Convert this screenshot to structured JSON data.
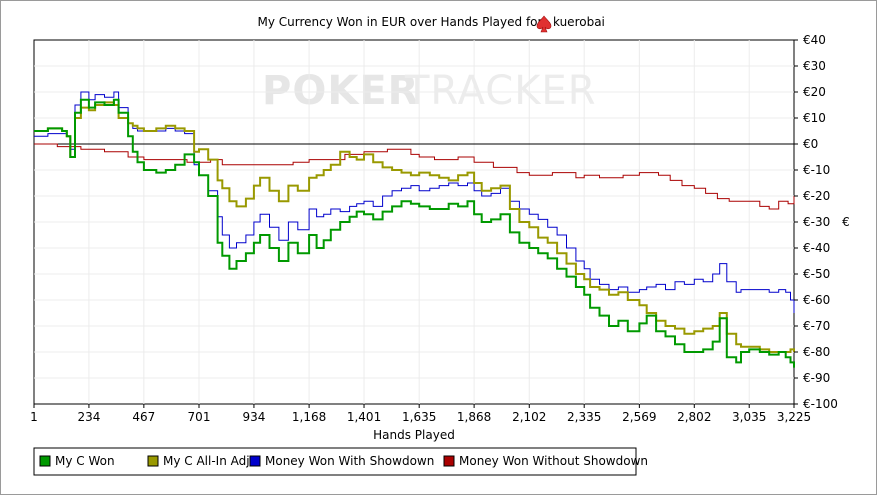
{
  "chart_data": {
    "type": "line",
    "title": "My Currency Won in EUR over Hands Played for",
    "player_name": "kuerobai",
    "watermark": {
      "left": "POKER",
      "right": "TRACKER"
    },
    "xlabel": "Hands Played",
    "ylabel": "€",
    "xlim": [
      1,
      3225
    ],
    "ylim": [
      -100,
      40
    ],
    "x_ticks": [
      1,
      234,
      467,
      701,
      934,
      1168,
      1401,
      1635,
      1868,
      2102,
      2335,
      2569,
      2802,
      3035,
      3225
    ],
    "x_tick_labels": [
      "1",
      "234",
      "467",
      "701",
      "934",
      "1,168",
      "1,401",
      "1,635",
      "1,868",
      "2,102",
      "2,335",
      "2,569",
      "2,802",
      "3,035",
      "3,225"
    ],
    "y_ticks": [
      40,
      30,
      20,
      10,
      0,
      -10,
      -20,
      -30,
      -40,
      -50,
      -60,
      -70,
      -80,
      -90,
      -100
    ],
    "y_tick_labels": [
      "€40",
      "€30",
      "€20",
      "€10",
      "€0",
      "€-10",
      "€-20",
      "€-30",
      "€-40",
      "€-50",
      "€-60",
      "€-70",
      "€-80",
      "€-90",
      "€-100"
    ],
    "grid": true,
    "legend_position": "bottom-left",
    "series": [
      {
        "name": "My C Won",
        "color": "#009900",
        "x": [
          1,
          60,
          120,
          140,
          155,
          175,
          200,
          234,
          260,
          300,
          340,
          360,
          400,
          420,
          440,
          467,
          520,
          560,
          600,
          640,
          680,
          701,
          740,
          780,
          800,
          830,
          860,
          900,
          934,
          960,
          1000,
          1040,
          1080,
          1120,
          1168,
          1200,
          1230,
          1260,
          1300,
          1340,
          1370,
          1401,
          1440,
          1480,
          1520,
          1560,
          1600,
          1635,
          1680,
          1720,
          1760,
          1800,
          1840,
          1868,
          1900,
          1940,
          1980,
          2020,
          2060,
          2102,
          2140,
          2180,
          2220,
          2260,
          2300,
          2335,
          2360,
          2400,
          2440,
          2480,
          2520,
          2569,
          2600,
          2640,
          2680,
          2720,
          2760,
          2802,
          2840,
          2880,
          2910,
          2940,
          2980,
          3000,
          3035,
          3080,
          3120,
          3160,
          3190,
          3210,
          3225
        ],
        "values": [
          5,
          6,
          5,
          3,
          -5,
          12,
          17,
          14,
          16,
          15,
          17,
          12,
          3,
          -3,
          -7,
          -10,
          -11,
          -10,
          -8,
          -4,
          -7,
          -12,
          -20,
          -38,
          -43,
          -48,
          -45,
          -42,
          -38,
          -35,
          -40,
          -45,
          -38,
          -42,
          -35,
          -40,
          -37,
          -33,
          -30,
          -28,
          -26,
          -27,
          -29,
          -26,
          -24,
          -22,
          -23,
          -24,
          -25,
          -25,
          -23,
          -24,
          -22,
          -27,
          -30,
          -29,
          -27,
          -34,
          -38,
          -40,
          -42,
          -44,
          -48,
          -51,
          -55,
          -58,
          -63,
          -66,
          -70,
          -68,
          -72,
          -69,
          -66,
          -72,
          -74,
          -77,
          -80,
          -80,
          -79,
          -76,
          -67,
          -82,
          -84,
          -80,
          -79,
          -80,
          -81,
          -80,
          -82,
          -84,
          -86
        ]
      },
      {
        "name": "My C All-In Adj",
        "color": "#999900",
        "x": [
          1,
          60,
          120,
          140,
          155,
          175,
          200,
          234,
          260,
          300,
          340,
          360,
          400,
          420,
          440,
          467,
          520,
          560,
          600,
          640,
          680,
          701,
          740,
          780,
          800,
          830,
          860,
          900,
          934,
          960,
          1000,
          1040,
          1080,
          1120,
          1168,
          1200,
          1230,
          1260,
          1300,
          1340,
          1370,
          1401,
          1440,
          1480,
          1520,
          1560,
          1600,
          1635,
          1680,
          1720,
          1760,
          1800,
          1840,
          1868,
          1900,
          1940,
          1980,
          2020,
          2060,
          2102,
          2140,
          2180,
          2220,
          2260,
          2300,
          2335,
          2360,
          2400,
          2440,
          2480,
          2520,
          2569,
          2600,
          2640,
          2680,
          2720,
          2760,
          2802,
          2840,
          2880,
          2910,
          2940,
          2980,
          3000,
          3035,
          3080,
          3120,
          3160,
          3190,
          3210,
          3225
        ],
        "values": [
          5,
          6,
          5,
          3,
          -5,
          10,
          14,
          13,
          15,
          16,
          15,
          10,
          8,
          7,
          6,
          5,
          6,
          7,
          6,
          5,
          -3,
          -2,
          -6,
          -14,
          -17,
          -22,
          -24,
          -21,
          -16,
          -13,
          -18,
          -22,
          -16,
          -18,
          -13,
          -12,
          -10,
          -8,
          -3,
          -5,
          -6,
          -4,
          -7,
          -9,
          -10,
          -11,
          -12,
          -11,
          -12,
          -13,
          -14,
          -12,
          -11,
          -15,
          -18,
          -17,
          -16,
          -25,
          -30,
          -32,
          -36,
          -38,
          -42,
          -46,
          -50,
          -52,
          -55,
          -56,
          -58,
          -57,
          -60,
          -62,
          -65,
          -68,
          -70,
          -71,
          -73,
          -72,
          -71,
          -70,
          -65,
          -73,
          -77,
          -78,
          -78,
          -79,
          -80,
          -80,
          -80,
          -79,
          -80
        ]
      },
      {
        "name": "Money Won With Showdown",
        "color": "#0000cc",
        "x": [
          1,
          60,
          120,
          140,
          155,
          175,
          200,
          234,
          260,
          300,
          340,
          360,
          400,
          420,
          440,
          467,
          520,
          560,
          600,
          640,
          680,
          701,
          740,
          780,
          800,
          830,
          860,
          900,
          934,
          960,
          1000,
          1040,
          1080,
          1120,
          1168,
          1200,
          1230,
          1260,
          1300,
          1340,
          1370,
          1401,
          1440,
          1480,
          1520,
          1560,
          1600,
          1635,
          1680,
          1720,
          1760,
          1800,
          1840,
          1868,
          1900,
          1940,
          1980,
          2020,
          2060,
          2102,
          2140,
          2180,
          2220,
          2260,
          2300,
          2335,
          2360,
          2400,
          2440,
          2480,
          2520,
          2569,
          2600,
          2640,
          2680,
          2720,
          2760,
          2802,
          2840,
          2880,
          2910,
          2940,
          2980,
          3000,
          3035,
          3080,
          3120,
          3160,
          3190,
          3210,
          3225
        ],
        "values": [
          3,
          4,
          4,
          3,
          -2,
          15,
          20,
          17,
          19,
          18,
          20,
          14,
          8,
          6,
          5,
          5,
          5,
          6,
          5,
          4,
          -8,
          -12,
          -18,
          -28,
          -35,
          -40,
          -38,
          -35,
          -30,
          -27,
          -32,
          -37,
          -30,
          -33,
          -25,
          -28,
          -27,
          -25,
          -26,
          -24,
          -23,
          -22,
          -24,
          -20,
          -18,
          -17,
          -16,
          -18,
          -17,
          -16,
          -15,
          -16,
          -15,
          -18,
          -20,
          -19,
          -17,
          -22,
          -25,
          -27,
          -29,
          -32,
          -35,
          -40,
          -45,
          -48,
          -52,
          -54,
          -56,
          -55,
          -57,
          -56,
          -55,
          -54,
          -56,
          -53,
          -54,
          -52,
          -53,
          -50,
          -46,
          -53,
          -57,
          -56,
          -56,
          -56,
          -57,
          -56,
          -57,
          -60,
          -65
        ]
      },
      {
        "name": "Money Won Without Showdown",
        "color": "#aa0000",
        "x": [
          1,
          100,
          200,
          300,
          400,
          467,
          550,
          650,
          701,
          750,
          800,
          900,
          1000,
          1100,
          1168,
          1250,
          1320,
          1401,
          1500,
          1600,
          1635,
          1700,
          1800,
          1868,
          1950,
          2050,
          2102,
          2200,
          2300,
          2335,
          2400,
          2500,
          2569,
          2650,
          2700,
          2750,
          2802,
          2850,
          2900,
          2950,
          3000,
          3035,
          3080,
          3120,
          3160,
          3200,
          3225
        ],
        "values": [
          0,
          -1,
          -2,
          -3,
          -5,
          -6,
          -6,
          -7,
          -7,
          -6,
          -8,
          -8,
          -8,
          -7,
          -6,
          -6,
          -4,
          -3,
          -2,
          -4,
          -5,
          -6,
          -5,
          -7,
          -9,
          -11,
          -12,
          -11,
          -13,
          -12,
          -13,
          -12,
          -11,
          -12,
          -14,
          -16,
          -17,
          -19,
          -21,
          -22,
          -22,
          -22,
          -24,
          -25,
          -22,
          -23,
          -20
        ]
      }
    ]
  }
}
